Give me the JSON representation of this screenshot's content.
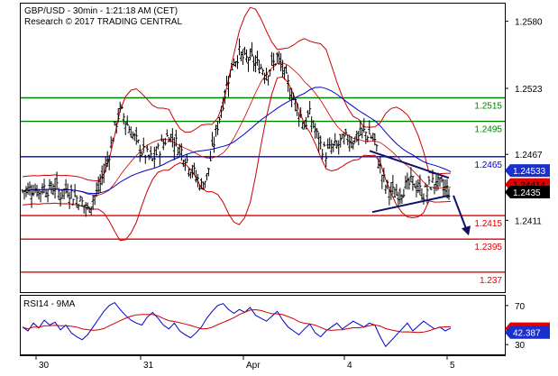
{
  "header": {
    "line1": "GBP/USD - 30min - 1:21:18 AM (CET)",
    "line2": "Research © 2017 TRADING CENTRAL"
  },
  "chart_data": [
    {
      "type": "candlestick",
      "title": "GBP/USD - 30min - 1:21:18 AM (CET)",
      "ylim": [
        1.235,
        1.2595
      ],
      "y_ticks": [
        "1.2580",
        "1.2523",
        "1.2467",
        "1.2411"
      ],
      "x_ticks": [
        "30",
        "31",
        "Apr",
        "4",
        "5"
      ],
      "levels": [
        {
          "label": "1.2515",
          "value": 1.2515,
          "color": "#008000"
        },
        {
          "label": "1.2495",
          "value": 1.2495,
          "color": "#008000"
        },
        {
          "label": "1.2465",
          "value": 1.2465,
          "color": "#0000cc"
        },
        {
          "label": "1.2415",
          "value": 1.2415,
          "color": "#e00000"
        },
        {
          "label": "1.2395",
          "value": 1.2395,
          "color": "#e00000"
        },
        {
          "label": "1.237",
          "value": 1.2367,
          "color": "#e00000"
        }
      ],
      "price_tags": [
        {
          "label": "1.24533",
          "value": 1.24533,
          "bg": "#1a2fd0",
          "fg": "#ffffff"
        },
        {
          "label": "1.24414",
          "value": 1.24414,
          "bg": "#e00000",
          "fg": "#000000"
        },
        {
          "label": "1.2435",
          "value": 1.2435,
          "bg": "#000000",
          "fg": "#ffffff"
        }
      ],
      "close_path": [
        1.2436,
        1.2437,
        1.2438,
        1.2436,
        1.2439,
        1.2437,
        1.244,
        1.2433,
        1.2438,
        1.2434,
        1.243,
        1.2426,
        1.242,
        1.2429,
        1.2437,
        1.2452,
        1.2468,
        1.2489,
        1.2505,
        1.2496,
        1.2486,
        1.2478,
        1.247,
        1.2466,
        1.2462,
        1.247,
        1.2477,
        1.2484,
        1.2479,
        1.2472,
        1.2465,
        1.2456,
        1.2448,
        1.244,
        1.2448,
        1.247,
        1.2492,
        1.2512,
        1.2532,
        1.2546,
        1.2553,
        1.2547,
        1.2549,
        1.2544,
        1.2541,
        1.2537,
        1.2542,
        1.2549,
        1.2539,
        1.2526,
        1.2514,
        1.2504,
        1.2492,
        1.25,
        1.2487,
        1.2475,
        1.2468,
        1.2472,
        1.2474,
        1.2478,
        1.2481,
        1.2479,
        1.2483,
        1.2486,
        1.2484,
        1.2478,
        1.2455,
        1.244,
        1.2436,
        1.2433,
        1.2437,
        1.244,
        1.2444,
        1.2438,
        1.2433,
        1.244,
        1.2444,
        1.2441,
        1.2438,
        1.2435
      ],
      "rsi": {
        "label": "RSI14 - 9MA",
        "ylim": [
          20,
          80
        ],
        "y_ticks": [
          "70",
          "30"
        ],
        "values": [
          48,
          44,
          52,
          47,
          55,
          50,
          53,
          45,
          50,
          42,
          38,
          35,
          40,
          48,
          56,
          64,
          70,
          73,
          66,
          60,
          55,
          52,
          50,
          58,
          63,
          57,
          50,
          46,
          52,
          44,
          40,
          37,
          42,
          48,
          57,
          64,
          70,
          72,
          66,
          62,
          66,
          63,
          68,
          60,
          57,
          54,
          59,
          64,
          55,
          48,
          44,
          40,
          46,
          51,
          42,
          38,
          44,
          48,
          52,
          46,
          50,
          54,
          51,
          48,
          52,
          50,
          38,
          28,
          34,
          40,
          46,
          52,
          44,
          49,
          54,
          50,
          46,
          48,
          44,
          47
        ],
        "tags": [
          {
            "label": "46.2169",
            "value": 46.2169,
            "bg": "#e00000",
            "fg": "#000000"
          },
          {
            "label": "42.387",
            "value": 42.387,
            "bg": "#1a2fd0",
            "fg": "#ffffff"
          }
        ]
      }
    }
  ]
}
